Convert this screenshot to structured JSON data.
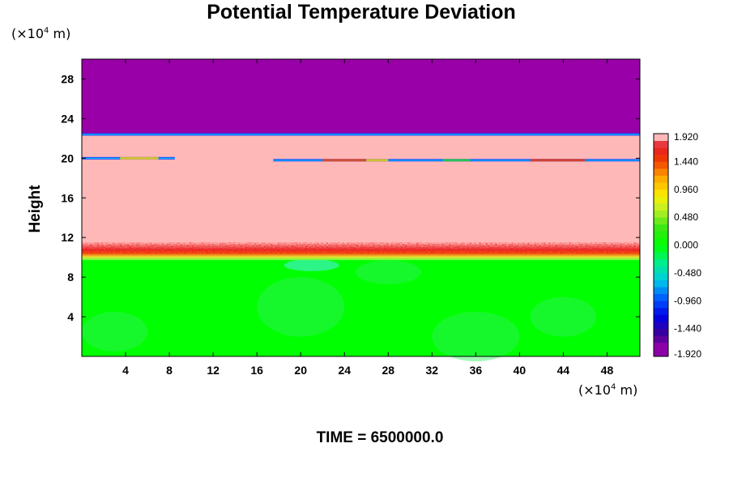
{
  "chart_data": {
    "type": "heatmap",
    "title": "Potential Temperature Deviation",
    "ylabel": "Height",
    "time_label": "TIME = 6500000.0",
    "x_unit": {
      "prefix": "(×10",
      "exp": "4",
      "suffix": " m)"
    },
    "y_unit": {
      "prefix": "(×10",
      "exp": "4",
      "suffix": " m)"
    },
    "xlim": [
      0,
      51
    ],
    "ylim": [
      0,
      30
    ],
    "x_ticks": [
      4,
      8,
      12,
      16,
      20,
      24,
      28,
      32,
      36,
      40,
      44,
      48
    ],
    "y_ticks": [
      4,
      8,
      12,
      16,
      20,
      24,
      28
    ],
    "colorbar": {
      "min": -1.92,
      "max": 1.92,
      "labels": [
        "1.920",
        "1.440",
        "0.960",
        "0.480",
        "0.000",
        "-0.480",
        "-0.960",
        "-1.440",
        "-1.920"
      ],
      "label_values": [
        1.92,
        1.44,
        0.96,
        0.48,
        0.0,
        -0.48,
        -0.96,
        -1.44,
        -1.92
      ],
      "levels": 32
    },
    "layers": [
      {
        "name": "upper",
        "y_range": [
          22.4,
          30
        ],
        "value": -1.92
      },
      {
        "name": "middle",
        "y_range": [
          10.2,
          22.4
        ],
        "value": 1.92
      },
      {
        "name": "lower",
        "y_range": [
          0,
          10.2
        ],
        "value": 0.0
      }
    ],
    "interface_lines": [
      {
        "y": 22.4,
        "x_range": [
          0,
          51
        ]
      },
      {
        "y": 20.0,
        "x_range": [
          0,
          8.5
        ]
      },
      {
        "y": 19.8,
        "x_range": [
          17.5,
          51
        ]
      }
    ],
    "grid": false,
    "legend": "right"
  }
}
